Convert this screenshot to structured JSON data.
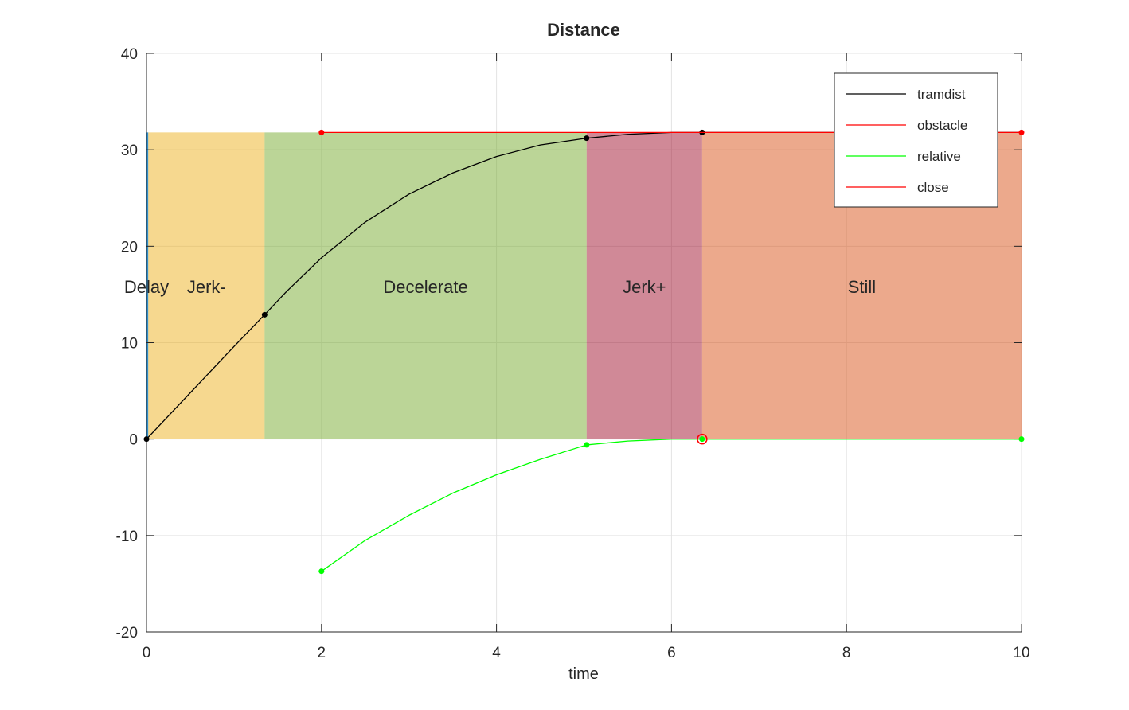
{
  "chart_data": {
    "type": "line",
    "title": "Distance",
    "xlabel": "time",
    "ylabel": "",
    "xlim": [
      0,
      10
    ],
    "ylim": [
      -20,
      40
    ],
    "xticks": [
      0,
      2,
      4,
      6,
      8,
      10
    ],
    "yticks": [
      -20,
      -10,
      0,
      10,
      20,
      30,
      40
    ],
    "grid": true,
    "legend": {
      "position": "top-right",
      "entries": [
        {
          "label": "tramdist",
          "color": "#000000"
        },
        {
          "label": "obstacle",
          "color": "#ff0000"
        },
        {
          "label": "relative",
          "color": "#00ff00"
        },
        {
          "label": "close",
          "color": "#ff0000"
        }
      ]
    },
    "phases": [
      {
        "label": "Delay",
        "x0": 0,
        "x1": 0.02,
        "y0": 0,
        "y1": 31.8,
        "color": "#0072bd",
        "opacity": 0.8
      },
      {
        "label": "Jerk-",
        "x0": 0.02,
        "x1": 1.35,
        "y0": 0,
        "y1": 31.8,
        "color": "#edb120",
        "opacity": 0.5
      },
      {
        "label": "Decelerate",
        "x0": 1.35,
        "x1": 5.03,
        "y0": 0,
        "y1": 31.8,
        "color": "#77ac30",
        "opacity": 0.5
      },
      {
        "label": "Jerk+",
        "x0": 5.03,
        "x1": 6.35,
        "y0": 0,
        "y1": 31.8,
        "color": "#a2142f",
        "opacity": 0.5
      },
      {
        "label": "Still",
        "x0": 6.35,
        "x1": 10,
        "y0": 0,
        "y1": 31.8,
        "color": "#d95319",
        "opacity": 0.5
      }
    ],
    "phase_label_y": 15.8,
    "series": [
      {
        "name": "tramdist",
        "color": "#000000",
        "x": [
          0,
          0.5,
          1.0,
          1.35,
          1.6,
          2.0,
          2.5,
          3.0,
          3.5,
          4.0,
          4.5,
          5.03,
          5.5,
          6.0,
          6.35,
          10
        ],
        "y": [
          0,
          4.8,
          9.6,
          12.9,
          15.3,
          18.8,
          22.5,
          25.4,
          27.6,
          29.3,
          30.5,
          31.2,
          31.6,
          31.8,
          31.8,
          31.8
        ],
        "markers": [
          [
            0,
            0
          ],
          [
            1.35,
            12.9
          ],
          [
            5.03,
            31.2
          ],
          [
            6.35,
            31.8
          ]
        ]
      },
      {
        "name": "obstacle",
        "color": "#ff0000",
        "x": [
          2,
          10
        ],
        "y": [
          31.8,
          31.8
        ],
        "markers": [
          [
            2,
            31.8
          ],
          [
            10,
            31.8
          ]
        ]
      },
      {
        "name": "relative",
        "color": "#00ff00",
        "x": [
          2,
          2.5,
          3.0,
          3.5,
          4.0,
          4.5,
          5.03,
          5.5,
          6.0,
          6.35,
          10
        ],
        "y": [
          -13.7,
          -10.5,
          -7.9,
          -5.6,
          -3.7,
          -2.1,
          -0.6,
          -0.2,
          0,
          0,
          0
        ],
        "markers": [
          [
            2,
            -13.7
          ],
          [
            5.03,
            -0.6
          ],
          [
            6.35,
            0
          ],
          [
            10,
            0
          ]
        ]
      },
      {
        "name": "close",
        "color": "#ff0000",
        "x": [
          6.35
        ],
        "y": [
          0
        ],
        "markers": [
          [
            6.35,
            0
          ]
        ]
      }
    ]
  }
}
